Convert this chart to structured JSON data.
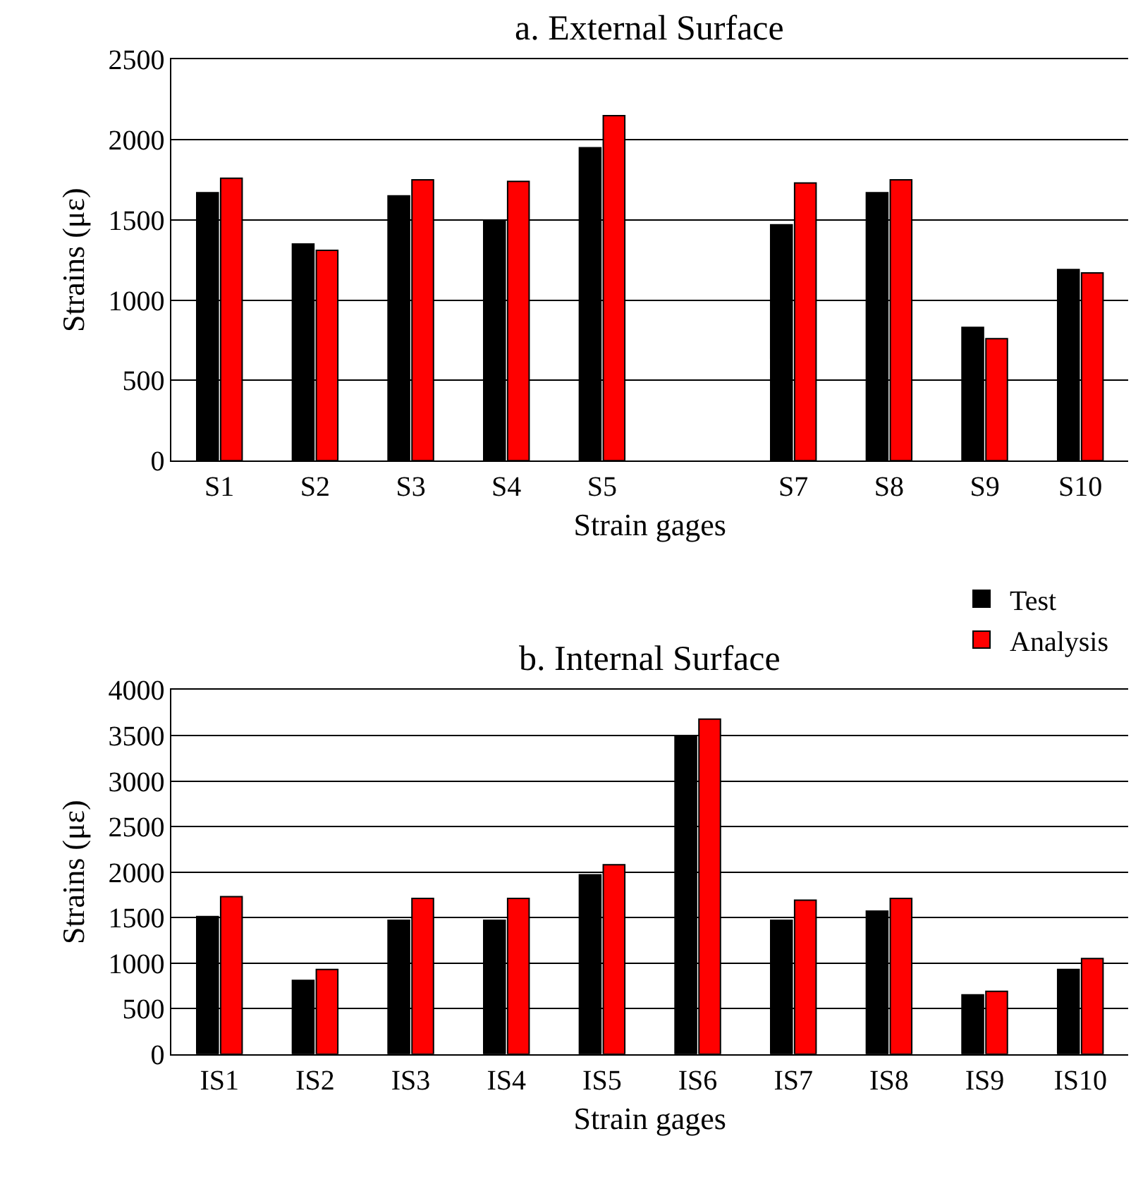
{
  "chart_data": [
    {
      "type": "bar",
      "title": "a. External Surface",
      "xlabel": "Strain gages",
      "ylabel": "Strains (με)",
      "categories": [
        "S1",
        "S2",
        "S3",
        "S4",
        "S5",
        null,
        "S7",
        "S8",
        "S9",
        "S10"
      ],
      "series": [
        {
          "name": "Test",
          "color": "#000000",
          "values": [
            1670,
            1350,
            1650,
            1490,
            1950,
            null,
            1470,
            1670,
            830,
            1190
          ]
        },
        {
          "name": "Analysis",
          "color": "#ff0000",
          "values": [
            1760,
            1310,
            1750,
            1740,
            2150,
            null,
            1730,
            1750,
            760,
            1170
          ]
        }
      ],
      "ylim": [
        0,
        2500
      ],
      "yticks": [
        0,
        500,
        1000,
        1500,
        2000,
        2500
      ],
      "grid": "y",
      "legend": "bottom right"
    },
    {
      "type": "bar",
      "title": "b. Internal Surface",
      "xlabel": "Strain gages",
      "ylabel": "Strains (με)",
      "categories": [
        "IS1",
        "IS2",
        "IS3",
        "IS4",
        "IS5",
        "IS6",
        "IS7",
        "IS8",
        "IS9",
        "IS10"
      ],
      "series": [
        {
          "color": "#000000",
          "values": [
            1510,
            810,
            1470,
            1470,
            1970,
            3500,
            1470,
            1570,
            650,
            930
          ]
        },
        {
          "color": "#ff0000",
          "values": [
            1730,
            930,
            1710,
            1710,
            2080,
            3680,
            1690,
            1710,
            690,
            1050
          ]
        }
      ],
      "ylim": [
        0,
        4000
      ],
      "yticks": [
        0,
        500,
        1000,
        1500,
        2000,
        2500,
        3000,
        3500,
        4000
      ],
      "grid": "y"
    }
  ]
}
